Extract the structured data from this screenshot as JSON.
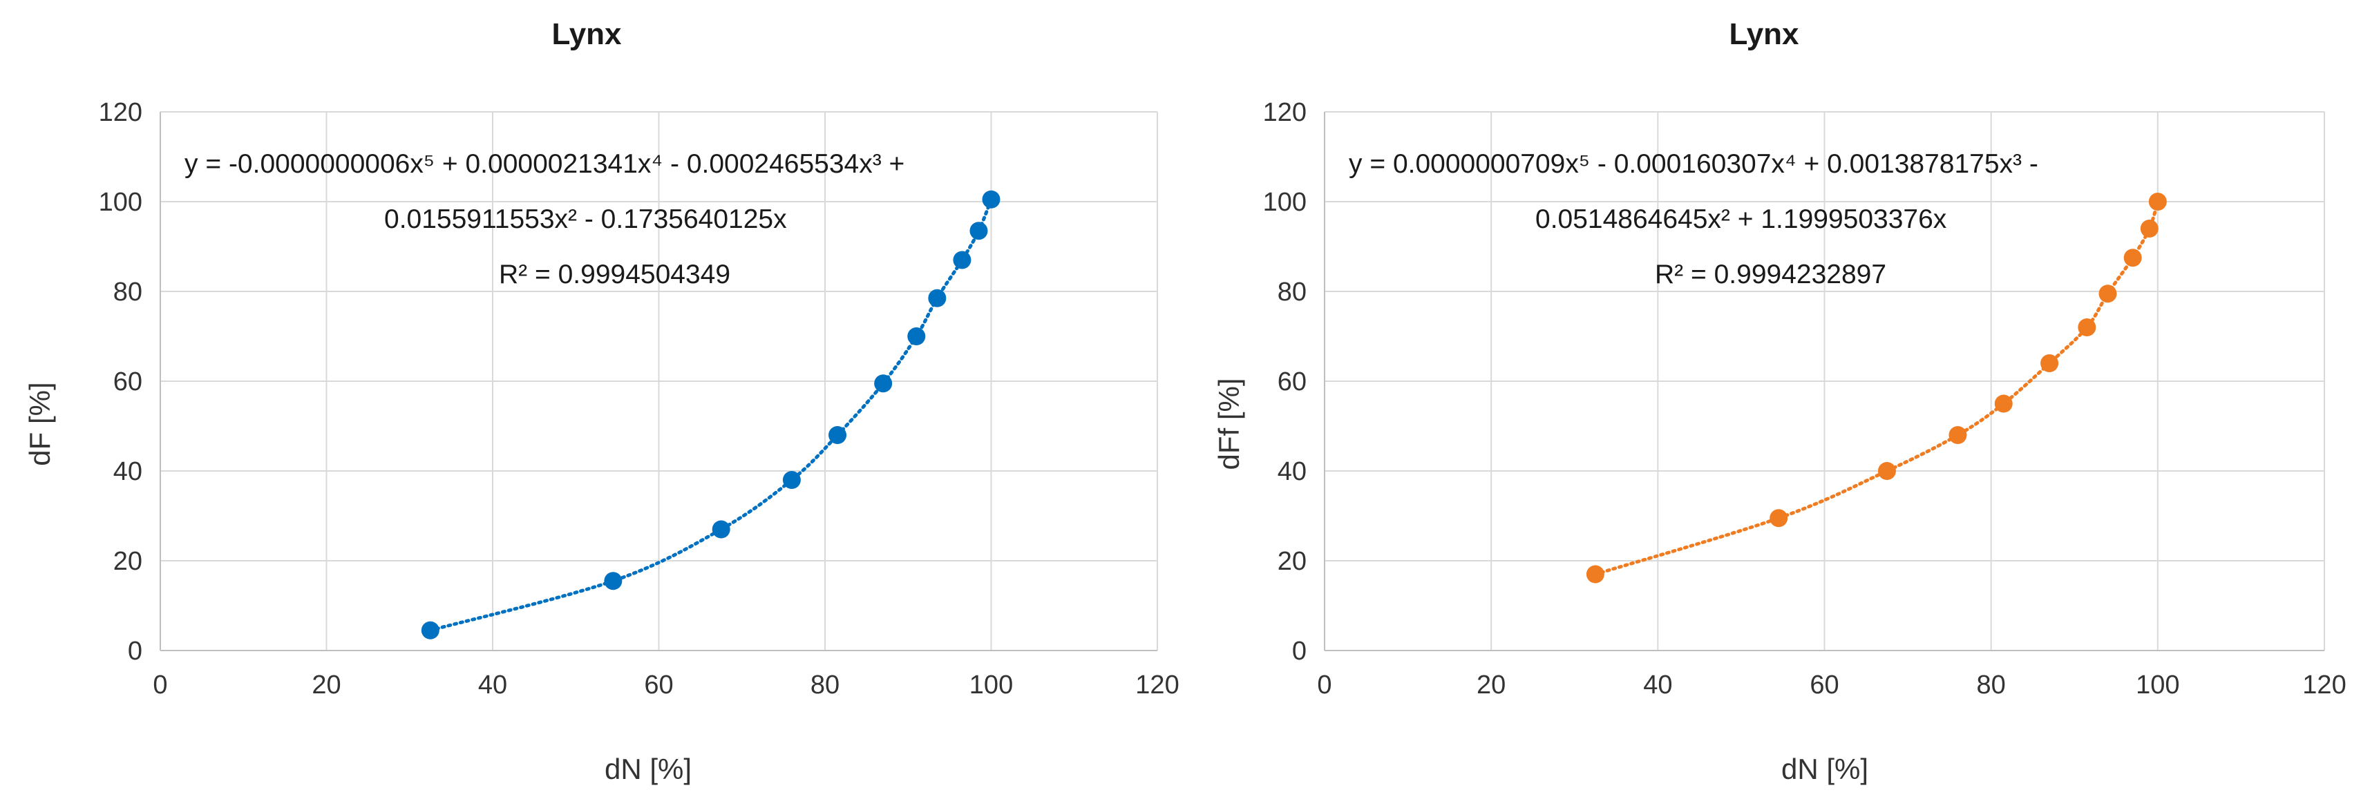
{
  "chart_data": [
    {
      "type": "scatter",
      "title": "Lynx",
      "xlabel": "dN [%]",
      "ylabel": "dF [%]",
      "xlim": [
        0,
        120
      ],
      "ylim": [
        0,
        120
      ],
      "x_ticks": [
        "0",
        "20",
        "40",
        "60",
        "80",
        "100",
        "120"
      ],
      "y_ticks": [
        "0",
        "20",
        "40",
        "60",
        "80",
        "100",
        "120"
      ],
      "grid": "vertical and horizontal",
      "color": "#0070c0",
      "trendline": "polynomial (dotted)",
      "equation_lines": [
        "y = -0.0000000006x⁵  + 0.0000021341x⁴  - 0.0002465534x³  +",
        "0.0155911553x²  - 0.1735640125x",
        "R² = 0.9994504349"
      ],
      "x": [
        32.5,
        54.5,
        67.5,
        76,
        81.5,
        87,
        91,
        93.5,
        96.5,
        98.5,
        100
      ],
      "y": [
        4.5,
        15.5,
        27,
        38,
        48,
        59.5,
        70,
        78.5,
        87,
        93.5,
        100.5
      ]
    },
    {
      "type": "scatter",
      "title": "Lynx",
      "xlabel": "dN [%]",
      "ylabel": "dFf [%]",
      "xlim": [
        0,
        120
      ],
      "ylim": [
        0,
        120
      ],
      "x_ticks": [
        "0",
        "20",
        "40",
        "60",
        "80",
        "100",
        "120"
      ],
      "y_ticks": [
        "0",
        "20",
        "40",
        "60",
        "80",
        "100",
        "120"
      ],
      "grid": "vertical and horizontal",
      "color": "#f07c22",
      "trendline": "polynomial (dotted)",
      "equation_lines": [
        "y = 0.0000000709x⁵  - 0.000160307x⁴  + 0.0013878175x³  -",
        "0.0514864645x²  + 1.1999503376x",
        "R² = 0.9994232897"
      ],
      "x": [
        32.5,
        54.5,
        67.5,
        76,
        81.5,
        87,
        91.5,
        94,
        97,
        99,
        100
      ],
      "y": [
        17,
        29.5,
        40,
        48,
        55,
        64,
        72,
        79.5,
        87.5,
        94,
        100
      ]
    }
  ]
}
